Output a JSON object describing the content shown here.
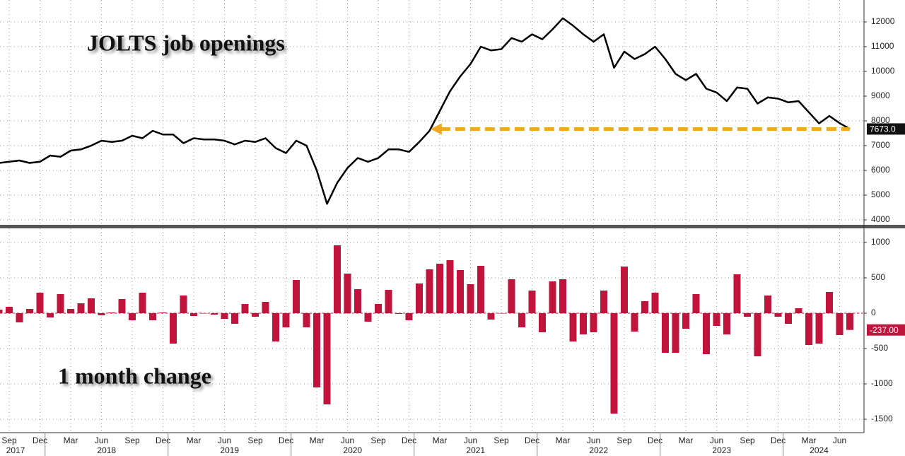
{
  "chart_data": [
    {
      "type": "line",
      "title": "JOLTS job openings",
      "color": "#000000",
      "arrow_color": "#f0a820",
      "values": [
        6300,
        6350,
        6400,
        6300,
        6350,
        6600,
        6550,
        6800,
        6850,
        7000,
        7200,
        7150,
        7200,
        7400,
        7300,
        7600,
        7450,
        7450,
        7100,
        7300,
        7250,
        7250,
        7200,
        7050,
        7200,
        7150,
        7300,
        6900,
        6700,
        7200,
        7000,
        6000,
        4650,
        5500,
        6100,
        6500,
        6350,
        6500,
        6850,
        6850,
        6750,
        7150,
        7600,
        8400,
        9200,
        9800,
        10300,
        11000,
        10850,
        10900,
        11350,
        11200,
        11500,
        11300,
        11700,
        12150,
        11850,
        11500,
        11200,
        11500,
        10150,
        10800,
        10500,
        10700,
        11000,
        10500,
        9900,
        9650,
        9900,
        9300,
        9150,
        8800,
        9350,
        9300,
        8700,
        8950,
        8900,
        8750,
        8800,
        8350,
        7900,
        8200,
        7910,
        7673
      ],
      "value_labels": [
        null,
        null,
        null,
        null,
        null,
        null,
        null,
        null,
        null,
        null,
        null,
        null,
        null,
        null,
        null,
        null,
        null,
        null,
        null,
        null,
        null,
        null,
        null,
        null,
        null,
        null,
        null,
        null,
        null,
        null,
        null,
        null,
        null,
        null,
        null,
        null,
        null,
        null,
        null,
        null,
        null,
        null,
        null,
        null,
        null,
        null,
        null,
        null,
        null,
        null,
        null,
        null,
        null,
        null,
        null,
        null,
        null,
        null,
        null,
        null,
        null,
        null,
        null,
        null,
        null,
        null,
        null,
        null,
        null,
        null,
        null,
        null,
        null,
        null,
        null,
        null,
        null,
        null,
        null,
        null,
        null,
        null,
        null,
        "7673.0"
      ],
      "ylim": [
        3800,
        12886
      ],
      "yticks": [
        4000,
        5000,
        6000,
        7000,
        8000,
        9000,
        10000,
        11000,
        12000
      ],
      "grid": true
    },
    {
      "type": "bar",
      "title": "1 month change",
      "color": "#c0143c",
      "categories": [
        null,
        "Sep",
        null,
        null,
        "Dec",
        null,
        null,
        "Mar",
        null,
        null,
        "Jun",
        null,
        null,
        "Sep",
        null,
        null,
        "Dec",
        null,
        null,
        "Mar",
        null,
        null,
        "Jun",
        null,
        null,
        "Sep",
        null,
        null,
        "Dec",
        null,
        null,
        "Mar",
        null,
        null,
        "Jun",
        null,
        null,
        "Sep",
        null,
        null,
        "Dec",
        null,
        null,
        "Mar",
        null,
        null,
        "Jun",
        null,
        null,
        "Sep",
        null,
        null,
        "Dec",
        null,
        null,
        "Mar",
        null,
        null,
        "Jun",
        null,
        null,
        "Sep",
        null,
        null,
        "Dec",
        null,
        null,
        "Mar",
        null,
        null,
        "Jun",
        null,
        null,
        "Sep",
        null,
        null,
        "Dec",
        null,
        null,
        "Mar",
        null,
        null,
        "Jun",
        null
      ],
      "years": [
        "2017",
        "2018",
        "2019",
        "2020",
        "2021",
        "2022",
        "2023",
        "2024"
      ],
      "values": [
        50,
        90,
        -130,
        60,
        290,
        -60,
        270,
        60,
        140,
        210,
        -30,
        10,
        200,
        -100,
        290,
        -100,
        10,
        -430,
        250,
        -40,
        0,
        -20,
        -80,
        -150,
        130,
        -50,
        160,
        -400,
        -200,
        470,
        -200,
        -1050,
        -1290,
        960,
        560,
        340,
        -120,
        130,
        330,
        -10,
        -100,
        420,
        620,
        700,
        750,
        610,
        410,
        670,
        -90,
        0,
        480,
        -200,
        320,
        -270,
        450,
        480,
        -400,
        -300,
        -270,
        320,
        -1420,
        660,
        -260,
        170,
        290,
        -560,
        -560,
        -220,
        270,
        -580,
        -180,
        -300,
        550,
        -50,
        -610,
        250,
        -50,
        -150,
        70,
        -450,
        -430,
        300,
        -310,
        -237
      ],
      "value_labels": [
        null,
        null,
        null,
        null,
        null,
        null,
        null,
        null,
        null,
        null,
        null,
        null,
        null,
        null,
        null,
        null,
        null,
        null,
        null,
        null,
        null,
        null,
        null,
        null,
        null,
        null,
        null,
        null,
        null,
        null,
        null,
        null,
        null,
        null,
        null,
        null,
        null,
        null,
        null,
        null,
        null,
        null,
        null,
        null,
        null,
        null,
        null,
        null,
        null,
        null,
        null,
        null,
        null,
        null,
        null,
        null,
        null,
        null,
        null,
        null,
        null,
        null,
        null,
        null,
        null,
        null,
        null,
        null,
        null,
        null,
        null,
        null,
        null,
        null,
        null,
        null,
        null,
        null,
        null,
        null,
        null,
        null,
        null,
        "-237.00"
      ],
      "ylim": [
        -1690,
        1200
      ],
      "yticks": [
        -1500,
        -1000,
        -500,
        0,
        500,
        1000
      ],
      "grid": true
    }
  ]
}
